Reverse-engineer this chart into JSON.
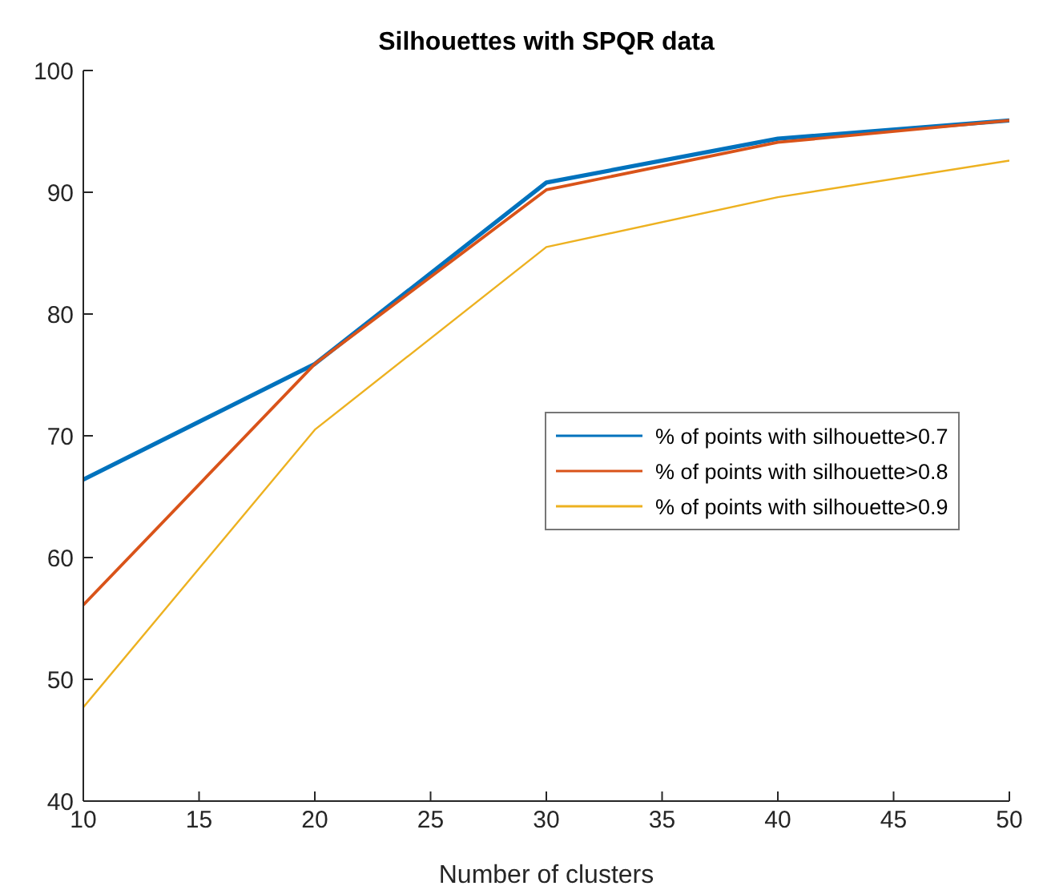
{
  "chart_data": {
    "type": "line",
    "title": "Silhouettes with SPQR data",
    "xlabel": "Number of clusters",
    "x": [
      10,
      20,
      30,
      40,
      50
    ],
    "series": [
      {
        "name": "% of points with silhouette>0.7",
        "color": "#0072bd",
        "values": [
          66.4,
          75.9,
          90.8,
          94.4,
          95.9
        ]
      },
      {
        "name": "% of points with silhouette>0.8",
        "color": "#d95319",
        "values": [
          56.1,
          75.9,
          90.2,
          94.1,
          95.9
        ]
      },
      {
        "name": "% of points with silhouette>0.9",
        "color": "#edb120",
        "values": [
          47.7,
          70.5,
          85.5,
          89.6,
          92.6
        ]
      }
    ],
    "xlim": [
      10,
      50
    ],
    "xticks": [
      10,
      15,
      20,
      25,
      30,
      35,
      40,
      45,
      50
    ],
    "ylim": [
      40,
      100
    ],
    "yticks": [
      40,
      50,
      60,
      70,
      80,
      90,
      100
    ],
    "grid": false,
    "legend": "right",
    "marker": "none",
    "line_style": "solid"
  }
}
